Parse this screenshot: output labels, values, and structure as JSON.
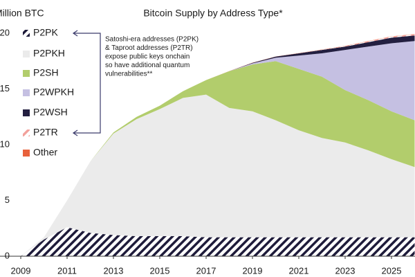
{
  "chart_data": {
    "type": "stacked-area",
    "title": "Bitcoin Supply by Address Type*",
    "y_label": "Million BTC",
    "annotation": [
      "Satoshi-era addresses (P2PK)",
      "& Taproot addresses (P2TR)",
      "expose public keys onchain",
      "so have additional quantum",
      "vulnerabilities**"
    ],
    "x": [
      2009,
      2010,
      2011,
      2012,
      2013,
      2014,
      2015,
      2016,
      2017,
      2018,
      2019,
      2020,
      2021,
      2022,
      2023,
      2024,
      2025,
      2026
    ],
    "xlim": [
      2009,
      2026
    ],
    "xticks": [
      2009,
      2011,
      2013,
      2015,
      2017,
      2019,
      2021,
      2023,
      2025
    ],
    "ylim": [
      0,
      20
    ],
    "yticks": [
      0,
      5,
      10,
      15,
      20
    ],
    "series": [
      {
        "name": "P2PK",
        "color": "#1e1b3a",
        "hatched": true,
        "values": [
          0,
          1.5,
          2.6,
          2.1,
          1.9,
          1.8,
          1.8,
          1.8,
          1.7,
          1.7,
          1.7,
          1.7,
          1.7,
          1.7,
          1.7,
          1.7,
          1.7,
          1.7
        ]
      },
      {
        "name": "P2PKH",
        "color": "#ebebeb",
        "values": [
          0,
          0.2,
          2.4,
          6.4,
          9.1,
          10.5,
          11.4,
          12.4,
          12.8,
          11.6,
          11.3,
          10.5,
          9.6,
          8.9,
          8.5,
          7.8,
          7.0,
          6.3
        ]
      },
      {
        "name": "P2SH",
        "color": "#b2cd6c",
        "values": [
          0,
          0,
          0,
          0,
          0.1,
          0.2,
          0.3,
          0.6,
          1.3,
          3.3,
          4.2,
          5.3,
          5.5,
          5.5,
          4.7,
          4.5,
          4.3,
          4.2
        ]
      },
      {
        "name": "P2WPKH",
        "color": "#c5c0e2",
        "values": [
          0,
          0,
          0,
          0,
          0,
          0,
          0,
          0,
          0,
          0,
          0.1,
          0.3,
          1.2,
          2.1,
          3.6,
          4.8,
          6.1,
          7.1
        ]
      },
      {
        "name": "P2WSH",
        "color": "#231f40",
        "values": [
          0,
          0,
          0,
          0,
          0,
          0,
          0,
          0,
          0,
          0,
          0.05,
          0.1,
          0.2,
          0.3,
          0.3,
          0.4,
          0.5,
          0.5
        ]
      },
      {
        "name": "P2TR",
        "color": "#f2a19b",
        "hatched": true,
        "values": [
          0,
          0,
          0,
          0,
          0,
          0,
          0,
          0,
          0,
          0,
          0,
          0,
          0,
          0.02,
          0.05,
          0.08,
          0.1,
          0.1
        ]
      },
      {
        "name": "Other",
        "color": "#e8613c",
        "values": [
          0,
          0,
          0,
          0,
          0,
          0,
          0,
          0,
          0,
          0.01,
          0.01,
          0.01,
          0.02,
          0.02,
          0.02,
          0.02,
          0.02,
          0.02
        ]
      }
    ]
  }
}
